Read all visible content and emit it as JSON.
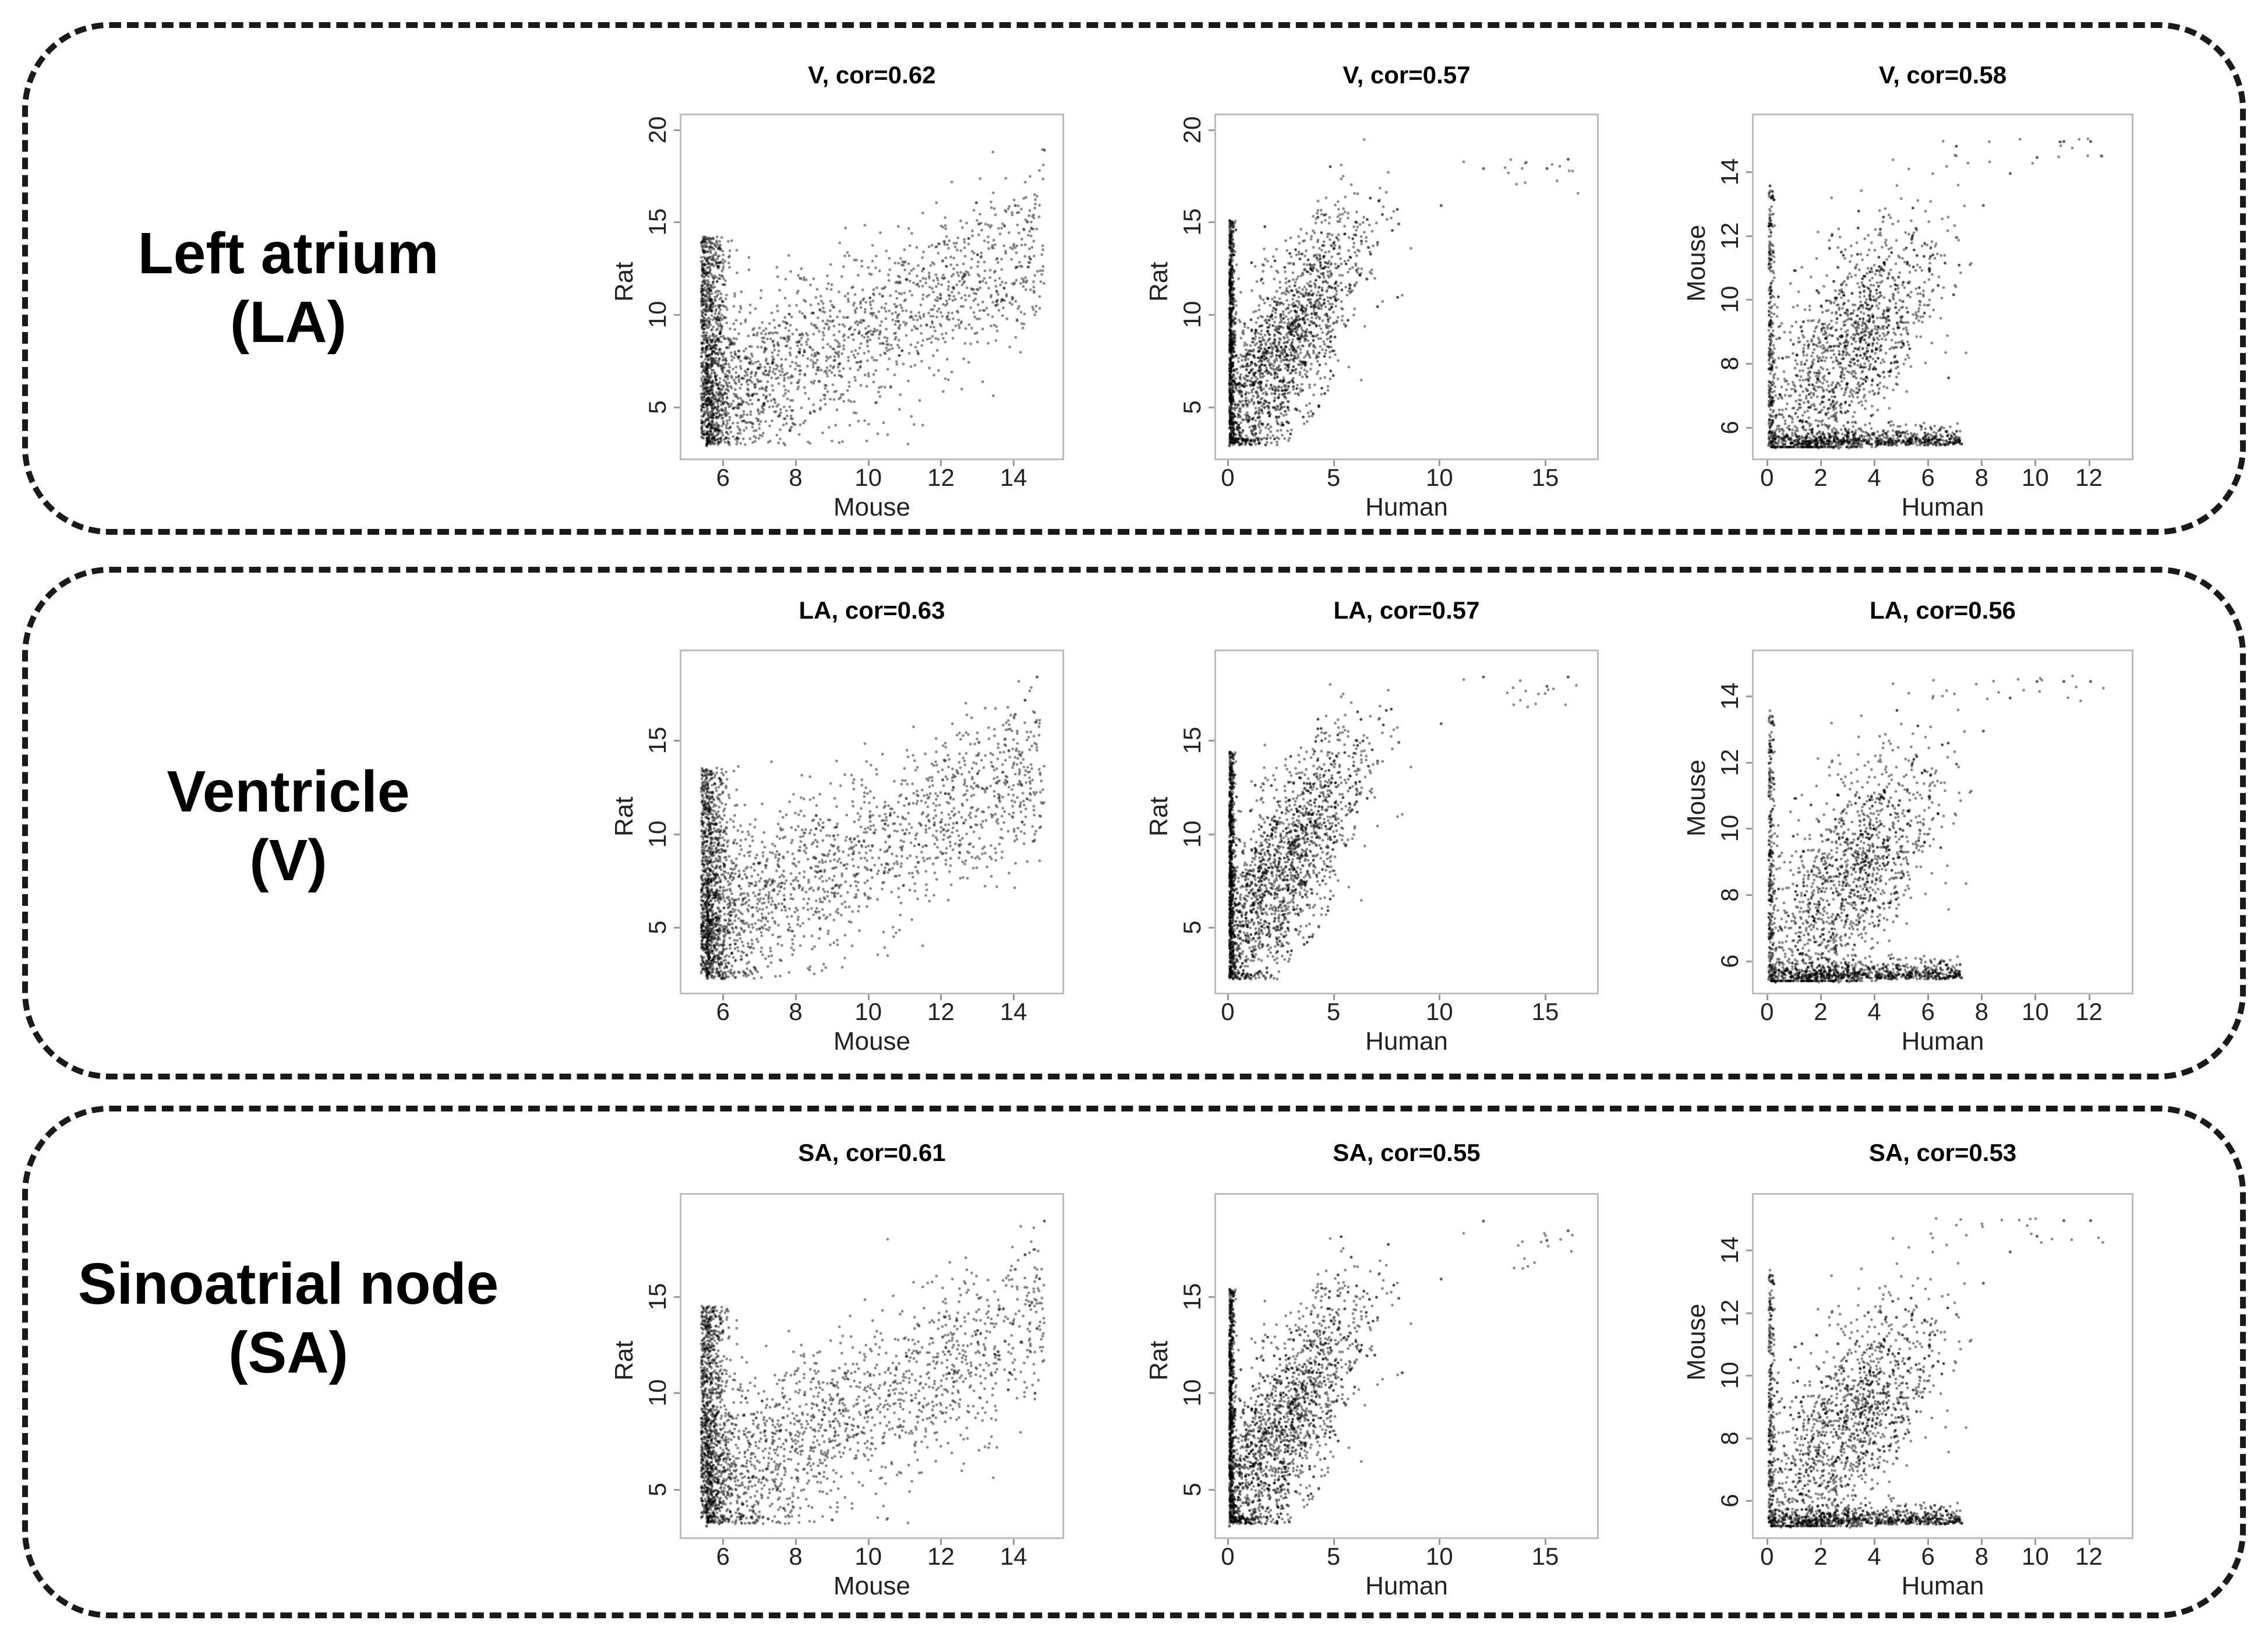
{
  "figure": {
    "rows": [
      {
        "label_line1": "Left atrium",
        "label_line2": "(LA)",
        "charts": [
          {
            "title": "V, cor=0.62"
          },
          {
            "title": "V, cor=0.57"
          },
          {
            "title": "V, cor=0.58"
          }
        ]
      },
      {
        "label_line1": "Ventricle",
        "label_line2": "(V)",
        "charts": [
          {
            "title": "LA, cor=0.63"
          },
          {
            "title": "LA, cor=0.57"
          },
          {
            "title": "LA, cor=0.56"
          }
        ]
      },
      {
        "label_line1": "Sinoatrial node",
        "label_line2": "(SA)",
        "charts": [
          {
            "title": "SA, cor=0.61"
          },
          {
            "title": "SA, cor=0.55"
          },
          {
            "title": "SA, cor=0.53"
          }
        ]
      }
    ],
    "point_color": "#000000",
    "frame_color": "#bdbdbd"
  },
  "chart_data": [
    {
      "type": "scatter",
      "title": "V, cor=0.62",
      "xlabel": "Mouse",
      "ylabel": "Rat",
      "xlim": [
        5,
        15.2
      ],
      "ylim": [
        2.5,
        20.5
      ],
      "xticks": [
        6,
        8,
        10,
        12,
        14
      ],
      "yticks": [
        5,
        10,
        15,
        20
      ],
      "cor": 0.62,
      "x": [
        5.5,
        5.6,
        5.8,
        6.2,
        6.8,
        7.5,
        8.2,
        9.0,
        10.0,
        11.0,
        12.0,
        13.0,
        14.0,
        14.8
      ],
      "y": [
        3.0,
        6.0,
        8.0,
        8.5,
        9.0,
        9.5,
        10.0,
        10.5,
        11.0,
        12.0,
        13.0,
        15.0,
        16.0,
        19.0
      ]
    },
    {
      "type": "scatter",
      "title": "V, cor=0.57",
      "xlabel": "Human",
      "ylabel": "Rat",
      "xlim": [
        -0.3,
        17.2
      ],
      "ylim": [
        2.5,
        20.5
      ],
      "xticks": [
        0,
        5,
        10,
        15
      ],
      "yticks": [
        5,
        10,
        15,
        20
      ],
      "cor": 0.57,
      "x": [
        0.0,
        0.5,
        1.0,
        2.0,
        3.0,
        4.0,
        5.0,
        6.0,
        7.0,
        8.0,
        10.0,
        12.0,
        15.0,
        16.0
      ],
      "y": [
        3.0,
        5.0,
        6.5,
        8.0,
        9.5,
        10.5,
        11.5,
        12.5,
        14.0,
        15.0,
        16.0,
        18.0,
        18.0,
        18.5
      ]
    },
    {
      "type": "scatter",
      "title": "V, cor=0.58",
      "xlabel": "Human",
      "ylabel": "Mouse",
      "xlim": [
        -0.3,
        13.4
      ],
      "ylim": [
        5.2,
        15.6
      ],
      "xticks": [
        0,
        2,
        4,
        6,
        8,
        10,
        12
      ],
      "yticks": [
        6,
        8,
        10,
        12,
        14
      ],
      "cor": 0.58,
      "x": [
        0.0,
        0.5,
        1.0,
        2.0,
        3.0,
        4.0,
        5.0,
        6.0,
        7.0,
        8.0,
        9.0,
        10.0,
        11.0,
        12.0
      ],
      "y": [
        5.5,
        6.0,
        6.5,
        7.0,
        8.0,
        9.0,
        10.0,
        11.0,
        12.0,
        13.0,
        14.0,
        14.5,
        15.0,
        15.0
      ]
    },
    {
      "type": "scatter",
      "title": "LA, cor=0.63",
      "xlabel": "Mouse",
      "ylabel": "Rat",
      "xlim": [
        5,
        15.2
      ],
      "ylim": [
        1.8,
        19.5
      ],
      "xticks": [
        6,
        8,
        10,
        12,
        14
      ],
      "yticks": [
        5,
        10,
        15
      ],
      "cor": 0.63,
      "x": [
        5.5,
        5.6,
        5.8,
        6.2,
        6.8,
        7.5,
        8.2,
        9.0,
        10.0,
        11.0,
        12.0,
        13.0,
        14.0,
        14.6
      ],
      "y": [
        2.5,
        5.5,
        7.5,
        8.0,
        8.5,
        9.0,
        9.5,
        10.0,
        11.0,
        12.0,
        13.0,
        15.0,
        16.5,
        18.5
      ]
    },
    {
      "type": "scatter",
      "title": "LA, cor=0.57",
      "xlabel": "Human",
      "ylabel": "Rat",
      "xlim": [
        -0.3,
        17.2
      ],
      "ylim": [
        1.8,
        19.5
      ],
      "xticks": [
        0,
        5,
        10,
        15
      ],
      "yticks": [
        5,
        10,
        15
      ],
      "cor": 0.57,
      "x": [
        0.0,
        0.5,
        1.0,
        2.0,
        3.0,
        4.0,
        5.0,
        6.0,
        7.0,
        8.0,
        10.0,
        12.0,
        15.0,
        16.0
      ],
      "y": [
        2.5,
        4.5,
        6.0,
        8.0,
        9.5,
        10.5,
        11.5,
        12.5,
        14.0,
        15.0,
        16.0,
        18.5,
        18.0,
        18.5
      ]
    },
    {
      "type": "scatter",
      "title": "LA, cor=0.56",
      "xlabel": "Human",
      "ylabel": "Mouse",
      "xlim": [
        -0.3,
        13.4
      ],
      "ylim": [
        5.2,
        15.2
      ],
      "xticks": [
        0,
        2,
        4,
        6,
        8,
        10,
        12
      ],
      "yticks": [
        6,
        8,
        10,
        12,
        14
      ],
      "cor": 0.56,
      "x": [
        0.0,
        0.5,
        1.0,
        2.0,
        3.0,
        4.0,
        5.0,
        6.0,
        7.0,
        8.0,
        9.0,
        10.0,
        11.0,
        12.0
      ],
      "y": [
        5.5,
        6.0,
        6.5,
        7.0,
        8.0,
        9.0,
        10.0,
        11.0,
        12.0,
        13.0,
        14.0,
        14.5,
        14.5,
        14.5
      ]
    },
    {
      "type": "scatter",
      "title": "SA, cor=0.61",
      "xlabel": "Mouse",
      "ylabel": "Rat",
      "xlim": [
        5,
        15.2
      ],
      "ylim": [
        2.8,
        20.0
      ],
      "xticks": [
        6,
        8,
        10,
        12,
        14
      ],
      "yticks": [
        5,
        10,
        15
      ],
      "cor": 0.61,
      "x": [
        5.5,
        5.6,
        5.8,
        6.2,
        6.8,
        7.5,
        8.2,
        9.0,
        10.0,
        11.0,
        12.0,
        13.0,
        14.0,
        14.8
      ],
      "y": [
        3.2,
        6.0,
        8.0,
        8.5,
        9.0,
        9.5,
        10.0,
        10.5,
        11.0,
        12.0,
        13.0,
        15.0,
        16.5,
        19.0
      ]
    },
    {
      "type": "scatter",
      "title": "SA, cor=0.55",
      "xlabel": "Human",
      "ylabel": "Rat",
      "xlim": [
        -0.3,
        17.2
      ],
      "ylim": [
        2.8,
        20.0
      ],
      "xticks": [
        0,
        5,
        10,
        15
      ],
      "yticks": [
        5,
        10,
        15
      ],
      "cor": 0.55,
      "x": [
        0.0,
        0.5,
        1.0,
        2.0,
        3.0,
        4.0,
        5.0,
        6.0,
        7.0,
        8.0,
        10.0,
        12.0,
        15.0,
        16.0
      ],
      "y": [
        3.2,
        5.0,
        6.5,
        8.0,
        9.5,
        10.5,
        11.5,
        12.5,
        14.0,
        15.0,
        16.0,
        19.0,
        18.0,
        18.5
      ]
    },
    {
      "type": "scatter",
      "title": "SA, cor=0.53",
      "xlabel": "Human",
      "ylabel": "Mouse",
      "xlim": [
        -0.3,
        13.4
      ],
      "ylim": [
        5.0,
        15.6
      ],
      "xticks": [
        0,
        2,
        4,
        6,
        8,
        10,
        12
      ],
      "yticks": [
        6,
        8,
        10,
        12,
        14
      ],
      "cor": 0.53,
      "x": [
        0.0,
        0.5,
        1.0,
        2.0,
        3.0,
        4.0,
        5.0,
        6.0,
        7.0,
        8.0,
        9.0,
        10.0,
        11.0,
        12.0
      ],
      "y": [
        5.5,
        6.0,
        6.5,
        7.0,
        8.0,
        9.0,
        10.0,
        11.0,
        12.0,
        13.0,
        14.0,
        14.5,
        15.0,
        15.0
      ]
    }
  ]
}
